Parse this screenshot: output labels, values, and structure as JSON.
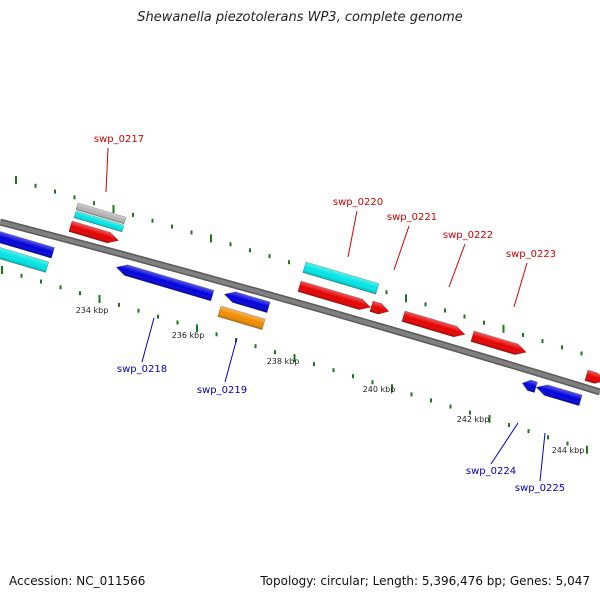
{
  "title": "Shewanella piezotolerans WP3, complete genome",
  "footer": {
    "accession": "Accession: NC_011566",
    "summary": "Topology: circular; Length: 5,396,476 bp; Genes: 5,047"
  },
  "colors": {
    "backbone": "#808080",
    "ticks": "#1a7a1a",
    "label_forward": "#d40000",
    "label_reverse": "#0000c8"
  },
  "tick_labels": [
    "234 kbp",
    "236 kbp",
    "238 kbp",
    "240 kbp",
    "242 kbp",
    "244 kbp"
  ],
  "gene_labels": [
    {
      "text": "swp_0217",
      "strand": "forward"
    },
    {
      "text": "swp_0218",
      "strand": "reverse"
    },
    {
      "text": "swp_0219",
      "strand": "reverse"
    },
    {
      "text": "swp_0220",
      "strand": "forward"
    },
    {
      "text": "swp_0221",
      "strand": "forward"
    },
    {
      "text": "swp_0222",
      "strand": "forward"
    },
    {
      "text": "swp_0223",
      "strand": "forward"
    },
    {
      "text": "swp_0224",
      "strand": "reverse"
    },
    {
      "text": "swp_0225",
      "strand": "reverse"
    }
  ],
  "features": [
    {
      "name": "feature-gray-top",
      "color": "#b4b4b4"
    },
    {
      "name": "feature-cyan-left-top",
      "color": "#00e5e5"
    },
    {
      "name": "gene-swp_0217-arrow",
      "color": "#e60000"
    },
    {
      "name": "feature-blue-left",
      "color": "#0000dd"
    },
    {
      "name": "feature-cyan-left",
      "color": "#00e5e5"
    },
    {
      "name": "gene-swp_0218-arrow",
      "color": "#0000dd"
    },
    {
      "name": "gene-swp_0219-arrow",
      "color": "#0000dd"
    },
    {
      "name": "feature-orange",
      "color": "#f28c00"
    },
    {
      "name": "feature-cyan-middle",
      "color": "#00e5e5"
    },
    {
      "name": "gene-swp_0220-arrow",
      "color": "#e60000"
    },
    {
      "name": "gene-swp_0221-arrow",
      "color": "#e60000"
    },
    {
      "name": "gene-swp_0222-arrow",
      "color": "#e60000"
    },
    {
      "name": "gene-swp_0223-arrow",
      "color": "#e60000"
    },
    {
      "name": "gene-swp_0224-arrow",
      "color": "#0000dd"
    },
    {
      "name": "gene-swp_0225-arrow",
      "color": "#0000dd"
    },
    {
      "name": "gene-right-edge-arrow",
      "color": "#e60000"
    }
  ]
}
